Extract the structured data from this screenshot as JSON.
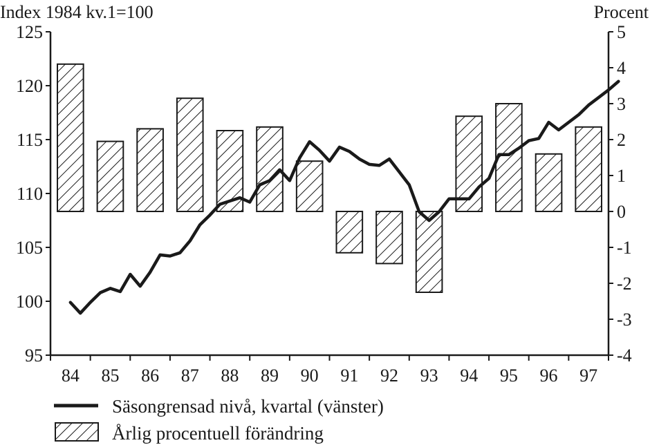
{
  "chart_data": {
    "type": "bar+line",
    "left_axis": {
      "title": "Index 1984 kv.1=100",
      "min": 95,
      "max": 125,
      "ticks": [
        95,
        100,
        105,
        110,
        115,
        120,
        125
      ]
    },
    "right_axis": {
      "title": "Procent",
      "min": -4,
      "max": 5,
      "ticks": [
        -4,
        -3,
        -2,
        -1,
        0,
        1,
        2,
        3,
        4,
        5
      ]
    },
    "categories": [
      "84",
      "85",
      "86",
      "87",
      "88",
      "89",
      "90",
      "91",
      "92",
      "93",
      "94",
      "95",
      "96",
      "97"
    ],
    "bars": {
      "name": "Årlig procentuell förändring",
      "axis": "right",
      "values": [
        4.1,
        1.95,
        2.3,
        3.15,
        2.25,
        2.35,
        1.4,
        -1.15,
        -1.45,
        -2.25,
        2.65,
        3.0,
        1.6,
        2.35
      ]
    },
    "line": {
      "name": "Säsongrensad nivå, kvartal (vänster)",
      "axis": "left",
      "x": [
        84.0,
        84.25,
        84.5,
        84.75,
        85.0,
        85.25,
        85.5,
        85.75,
        86.0,
        86.25,
        86.5,
        86.75,
        87.0,
        87.25,
        87.5,
        87.75,
        88.0,
        88.25,
        88.5,
        88.75,
        89.0,
        89.25,
        89.5,
        89.75,
        90.0,
        90.25,
        90.5,
        90.75,
        91.0,
        91.25,
        91.5,
        91.75,
        92.0,
        92.25,
        92.5,
        92.75,
        93.0,
        93.25,
        93.5,
        93.75,
        94.0,
        94.25,
        94.5,
        94.75,
        95.0,
        95.25,
        95.5,
        95.75,
        96.0,
        96.25,
        96.5,
        96.75,
        97.0,
        97.25,
        97.5,
        97.75
      ],
      "y": [
        99.9,
        98.9,
        99.9,
        100.8,
        101.2,
        100.9,
        102.5,
        101.4,
        102.7,
        104.3,
        104.2,
        104.5,
        105.6,
        107.1,
        108.0,
        109.0,
        109.3,
        109.6,
        109.2,
        110.8,
        111.2,
        112.2,
        111.2,
        113.3,
        114.8,
        114.0,
        113.0,
        114.3,
        113.9,
        113.2,
        112.7,
        112.6,
        113.2,
        112.0,
        110.8,
        108.3,
        107.5,
        108.3,
        109.5,
        109.5,
        109.5,
        110.6,
        111.4,
        113.6,
        113.6,
        114.2,
        114.9,
        115.1,
        116.6,
        115.9,
        116.6,
        117.3,
        118.2,
        118.9,
        119.6,
        120.4
      ]
    },
    "legend": {
      "placement": "bottom-left",
      "entries": [
        "Säsongrensad nivå, kvartal (vänster)",
        "Årlig procentuell förändring"
      ]
    },
    "grid": false
  },
  "colors": {
    "ink": "#1a1a1a",
    "background": "#ffffff"
  }
}
